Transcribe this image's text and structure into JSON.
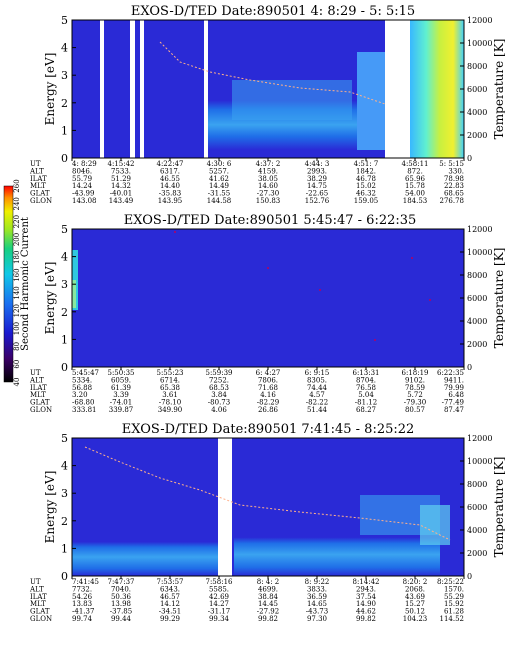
{
  "panels": [
    {
      "title": "EXOS-D/TED   Date:890501  4: 8:29 - 5: 5:15",
      "ylabel_left": "Energy [eV]",
      "ylabel_right": "Temperature [K]",
      "y_ticks_left": [
        "0",
        "1",
        "2",
        "3",
        "4",
        "5"
      ],
      "y_ticks_right": [
        "0",
        "2000",
        "4000",
        "6000",
        "8000",
        "10000",
        "12000"
      ],
      "table_labels": [
        "UT",
        "ALT",
        "ILAT",
        "MLT",
        "GLAT",
        "GLON"
      ],
      "table": [
        [
          "4: 8:29",
          "8046.",
          "55.79",
          "14.24",
          "-43.99",
          "143.08"
        ],
        [
          "4:15:42",
          "7533.",
          "51.29",
          "14.32",
          "-40.01",
          "143.49"
        ],
        [
          "4:22:47",
          "6317.",
          "46.55",
          "14.40",
          "-35.83",
          "143.95"
        ],
        [
          "4:30: 6",
          "5257.",
          "41.62",
          "14.49",
          "-31.55",
          "144.58"
        ],
        [
          "4:37: 2",
          "4159.",
          "38.05",
          "14.60",
          "-27.30",
          "150.83"
        ],
        [
          "4:44: 3",
          "2993.",
          "38.29",
          "14.75",
          "-22.65",
          "152.76"
        ],
        [
          "4:51: 7",
          "1842.",
          "46.78",
          "15.02",
          "46.32",
          "159.05"
        ],
        [
          "4:58:11",
          "872.",
          "65.96",
          "15.78",
          "54.00",
          "184.53"
        ],
        [
          "5: 5:15",
          "330.",
          "78.98",
          "22.83",
          "68.65",
          "276.78"
        ]
      ]
    },
    {
      "title": "EXOS-D/TED   Date:890501  5:45:47 - 6:22:35",
      "ylabel_left": "Energy [eV]",
      "ylabel_right": "Temperature [K]",
      "y_ticks_left": [
        "0",
        "1",
        "2",
        "3",
        "4",
        "5"
      ],
      "y_ticks_right": [
        "0",
        "2000",
        "4000",
        "6000",
        "8000",
        "10000",
        "12000"
      ],
      "table_labels": [
        "UT",
        "ALT",
        "ILAT",
        "MLT",
        "GLAT",
        "GLON"
      ],
      "table": [
        [
          "5:45:47",
          "5334.",
          "56.88",
          "3.20",
          "-68.80",
          "333.81"
        ],
        [
          "5:50:35",
          "6059.",
          "61.39",
          "3.39",
          "-74.01",
          "339.87"
        ],
        [
          "5:55:23",
          "6714.",
          "65.38",
          "3.61",
          "-78.10",
          "349.90"
        ],
        [
          "5:59:39",
          "7252.",
          "68.53",
          "3.84",
          "-80.73",
          "4.06"
        ],
        [
          "6: 4:27",
          "7806.",
          "71.68",
          "4.16",
          "-82.29",
          "26.86"
        ],
        [
          "6: 9:15",
          "8305.",
          "74.44",
          "4.57",
          "-82.22",
          "51.44"
        ],
        [
          "6:13:31",
          "8704.",
          "76.58",
          "5.04",
          "-81.12",
          "68.27"
        ],
        [
          "6:18:19",
          "9102.",
          "78.59",
          "5.72",
          "-79.30",
          "80.57"
        ],
        [
          "6:22:35",
          "9411.",
          "79.99",
          "6.48",
          "-77.49",
          "87.47"
        ]
      ]
    },
    {
      "title": "EXOS-D/TED   Date:890501  7:41:45 - 8:25:22",
      "ylabel_left": "Energy [eV]",
      "ylabel_right": "Temperature [K]",
      "y_ticks_left": [
        "0",
        "1",
        "2",
        "3",
        "4",
        "5"
      ],
      "y_ticks_right": [
        "0",
        "2000",
        "4000",
        "6000",
        "8000",
        "10000",
        "12000"
      ],
      "table_labels": [
        "UT",
        "ALT",
        "ILAT",
        "MLT",
        "GLAT",
        "GLON"
      ],
      "table": [
        [
          "7:41:45",
          "7732.",
          "54.26",
          "13.83",
          "-41.37",
          "99.74"
        ],
        [
          "7:47:37",
          "7040.",
          "50.36",
          "13.98",
          "-37.85",
          "99.44"
        ],
        [
          "7:53:57",
          "6343.",
          "46.57",
          "14.12",
          "-34.51",
          "99.29"
        ],
        [
          "7:58:16",
          "5585.",
          "42.69",
          "14.27",
          "-31.17",
          "99.34"
        ],
        [
          "8: 4: 2",
          "4699.",
          "38.84",
          "14.45",
          "-27.92",
          "99.82"
        ],
        [
          "8: 9:22",
          "3833.",
          "36.59",
          "14.65",
          "-43.73",
          "97.30"
        ],
        [
          "8:14:42",
          "2943.",
          "37.54",
          "14.90",
          "44.62",
          "99.82"
        ],
        [
          "8:20: 2",
          "2068.",
          "43.69",
          "15.27",
          "50.12",
          "104.23"
        ],
        [
          "8:25:22",
          "1570.",
          "55.29",
          "15.92",
          "61.28",
          "114.52"
        ]
      ]
    }
  ],
  "colorbar": {
    "label": "Second Harmonic Current",
    "ticks": [
      "40",
      "60",
      "80",
      "100",
      "120",
      "140",
      "160",
      "180",
      "200",
      "220",
      "240",
      "260"
    ]
  },
  "chart_data": [
    {
      "type": "heatmap",
      "title": "EXOS-D/TED   Date:890501  4: 8:29 - 5: 5:15",
      "xlabel": "UT",
      "ylabel": "Energy [eV]",
      "y2label": "Temperature [K]",
      "ylim": [
        0,
        5
      ],
      "y2lim": [
        0,
        12000
      ],
      "x": [
        "4: 8:29",
        "4:15:42",
        "4:22:47",
        "4:30: 6",
        "4:37: 2",
        "4:44: 3",
        "4:51: 7",
        "4:58:11",
        "5: 5:15"
      ],
      "temperature_series": {
        "x": [
          "4:22:47",
          "4:30: 6",
          "4:37: 2",
          "4:44: 3",
          "4:51: 7"
        ],
        "values": [
          9800,
          7400,
          7000,
          6600,
          6200
        ]
      }
    },
    {
      "type": "heatmap",
      "title": "EXOS-D/TED   Date:890501  5:45:47 - 6:22:35",
      "xlabel": "UT",
      "ylabel": "Energy [eV]",
      "y2label": "Temperature [K]",
      "ylim": [
        0,
        5
      ],
      "y2lim": [
        0,
        12000
      ],
      "x": [
        "5:45:47",
        "5:50:35",
        "5:55:23",
        "5:59:39",
        "6: 4:27",
        "6: 9:15",
        "6:13:31",
        "6:18:19",
        "6:22:35"
      ]
    },
    {
      "type": "heatmap",
      "title": "EXOS-D/TED   Date:890501  7:41:45 - 8:25:22",
      "xlabel": "UT",
      "ylabel": "Energy [eV]",
      "y2label": "Temperature [K]",
      "ylim": [
        0,
        5
      ],
      "y2lim": [
        0,
        12000
      ],
      "x": [
        "7:41:45",
        "7:47:37",
        "7:53:57",
        "7:58:16",
        "8: 4: 2",
        "8: 9:22",
        "8:14:42",
        "8:20: 2",
        "8:25:22"
      ],
      "temperature_series": {
        "x": [
          "7:41:45",
          "7:53:57",
          "8: 4: 2",
          "8:14:42",
          "8:25:22"
        ],
        "values": [
          11000,
          8800,
          7200,
          6600,
          5600
        ]
      }
    }
  ]
}
